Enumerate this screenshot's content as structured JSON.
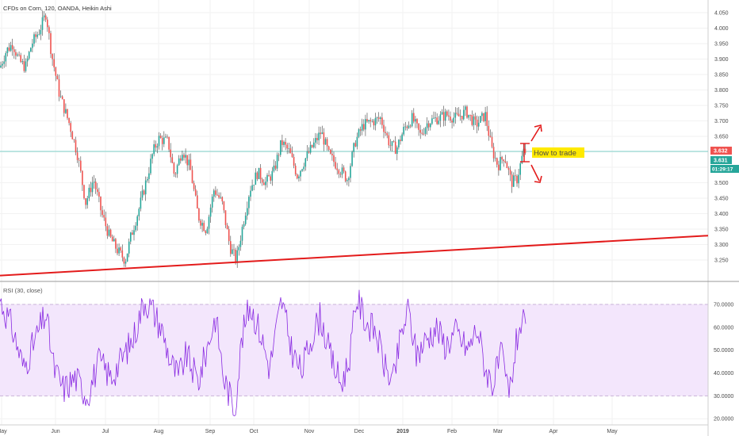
{
  "title": "CFDs on Corn, 120, OANDA, Heikin Ashi",
  "colors": {
    "up": "#26a69a",
    "down": "#ef5350",
    "wick": "#444444",
    "trend": "#e31b1b",
    "rsi": "#8a2be2",
    "band": "#f3e6fc",
    "hline": "#7fd1cb",
    "arrow": "#e31b1b",
    "tag_bg": "#ffea00",
    "tag_text": "#d23f00",
    "price_red": "#ef5350",
    "price_green": "#26a69a"
  },
  "chart_data": {
    "type": "candlestick",
    "price_axis": {
      "ylim": [
        3.25,
        4.07
      ],
      "ticks": [
        "4.050",
        "4.000",
        "3.950",
        "3.900",
        "3.850",
        "3.800",
        "3.750",
        "3.700",
        "3.650",
        "3.600",
        "3.550",
        "3.500",
        "3.450",
        "3.400",
        "3.350",
        "3.300",
        "3.250"
      ]
    },
    "time_axis": {
      "labels": [
        "May",
        "Jun",
        "Jul",
        "Aug",
        "Sep",
        "Oct",
        "Nov",
        "Dec",
        "2019",
        "Feb",
        "Mar",
        "Apr",
        "May"
      ]
    },
    "price_path": [
      {
        "t": 0,
        "v": 3.88
      },
      {
        "t": 8,
        "v": 3.93
      },
      {
        "t": 16,
        "v": 3.95
      },
      {
        "t": 24,
        "v": 3.9
      },
      {
        "t": 32,
        "v": 3.88
      },
      {
        "t": 40,
        "v": 3.95
      },
      {
        "t": 50,
        "v": 3.99
      },
      {
        "t": 58,
        "v": 4.04
      },
      {
        "t": 65,
        "v": 3.92
      },
      {
        "t": 75,
        "v": 3.8
      },
      {
        "t": 88,
        "v": 3.71
      },
      {
        "t": 98,
        "v": 3.62
      },
      {
        "t": 108,
        "v": 3.48
      },
      {
        "t": 118,
        "v": 3.55
      },
      {
        "t": 128,
        "v": 3.45
      },
      {
        "t": 138,
        "v": 3.38
      },
      {
        "t": 148,
        "v": 3.34
      },
      {
        "t": 158,
        "v": 3.31
      },
      {
        "t": 165,
        "v": 3.38
      },
      {
        "t": 175,
        "v": 3.46
      },
      {
        "t": 185,
        "v": 3.55
      },
      {
        "t": 193,
        "v": 3.63
      },
      {
        "t": 200,
        "v": 3.67
      },
      {
        "t": 212,
        "v": 3.66
      },
      {
        "t": 220,
        "v": 3.56
      },
      {
        "t": 230,
        "v": 3.64
      },
      {
        "t": 240,
        "v": 3.58
      },
      {
        "t": 250,
        "v": 3.44
      },
      {
        "t": 260,
        "v": 3.4
      },
      {
        "t": 270,
        "v": 3.52
      },
      {
        "t": 280,
        "v": 3.48
      },
      {
        "t": 290,
        "v": 3.35
      },
      {
        "t": 298,
        "v": 3.31
      },
      {
        "t": 305,
        "v": 3.4
      },
      {
        "t": 315,
        "v": 3.52
      },
      {
        "t": 325,
        "v": 3.57
      },
      {
        "t": 335,
        "v": 3.54
      },
      {
        "t": 345,
        "v": 3.57
      },
      {
        "t": 355,
        "v": 3.66
      },
      {
        "t": 365,
        "v": 3.63
      },
      {
        "t": 375,
        "v": 3.56
      },
      {
        "t": 385,
        "v": 3.61
      },
      {
        "t": 395,
        "v": 3.65
      },
      {
        "t": 405,
        "v": 3.69
      },
      {
        "t": 415,
        "v": 3.62
      },
      {
        "t": 425,
        "v": 3.59
      },
      {
        "t": 438,
        "v": 3.55
      },
      {
        "t": 448,
        "v": 3.66
      },
      {
        "t": 458,
        "v": 3.71
      },
      {
        "t": 470,
        "v": 3.72
      },
      {
        "t": 480,
        "v": 3.73
      },
      {
        "t": 492,
        "v": 3.65
      },
      {
        "t": 500,
        "v": 3.64
      },
      {
        "t": 510,
        "v": 3.7
      },
      {
        "t": 520,
        "v": 3.73
      },
      {
        "t": 530,
        "v": 3.68
      },
      {
        "t": 540,
        "v": 3.72
      },
      {
        "t": 552,
        "v": 3.73
      },
      {
        "t": 563,
        "v": 3.74
      },
      {
        "t": 575,
        "v": 3.73
      },
      {
        "t": 588,
        "v": 3.75
      },
      {
        "t": 600,
        "v": 3.71
      },
      {
        "t": 612,
        "v": 3.74
      },
      {
        "t": 620,
        "v": 3.64
      },
      {
        "t": 628,
        "v": 3.59
      },
      {
        "t": 636,
        "v": 3.62
      },
      {
        "t": 645,
        "v": 3.54
      },
      {
        "t": 652,
        "v": 3.55
      },
      {
        "t": 660,
        "v": 3.63
      },
      {
        "t": 664,
        "v": 3.632
      }
    ],
    "trendline": {
      "start": {
        "t": 0,
        "v": 3.265
      },
      "end": {
        "t": 932,
        "v": 3.383
      }
    },
    "horizontal_line": 3.632,
    "annotation": {
      "text": "How to trade"
    },
    "last_price": "3.632",
    "cursor_price": "3.631",
    "countdown": "01:29:17",
    "rsi": {
      "label": "RSI (30, close)",
      "ylim": [
        18,
        79
      ],
      "band": [
        30,
        70
      ],
      "ticks": [
        "70.0000",
        "60.0000",
        "50.0000",
        "40.0000",
        "30.0000",
        "20.0000"
      ],
      "path": [
        {
          "t": 0,
          "v": 72
        },
        {
          "t": 15,
          "v": 60
        },
        {
          "t": 30,
          "v": 42
        },
        {
          "t": 45,
          "v": 55
        },
        {
          "t": 58,
          "v": 66
        },
        {
          "t": 68,
          "v": 42
        },
        {
          "t": 80,
          "v": 33
        },
        {
          "t": 95,
          "v": 38
        },
        {
          "t": 110,
          "v": 30
        },
        {
          "t": 125,
          "v": 45
        },
        {
          "t": 140,
          "v": 38
        },
        {
          "t": 155,
          "v": 47
        },
        {
          "t": 168,
          "v": 55
        },
        {
          "t": 182,
          "v": 72
        },
        {
          "t": 192,
          "v": 68
        },
        {
          "t": 205,
          "v": 58
        },
        {
          "t": 215,
          "v": 45
        },
        {
          "t": 225,
          "v": 38
        },
        {
          "t": 235,
          "v": 48
        },
        {
          "t": 250,
          "v": 36
        },
        {
          "t": 262,
          "v": 52
        },
        {
          "t": 272,
          "v": 65
        },
        {
          "t": 282,
          "v": 38
        },
        {
          "t": 296,
          "v": 24
        },
        {
          "t": 305,
          "v": 55
        },
        {
          "t": 315,
          "v": 70
        },
        {
          "t": 328,
          "v": 58
        },
        {
          "t": 340,
          "v": 42
        },
        {
          "t": 355,
          "v": 72
        },
        {
          "t": 368,
          "v": 50
        },
        {
          "t": 380,
          "v": 40
        },
        {
          "t": 392,
          "v": 55
        },
        {
          "t": 404,
          "v": 65
        },
        {
          "t": 416,
          "v": 48
        },
        {
          "t": 430,
          "v": 35
        },
        {
          "t": 440,
          "v": 45
        },
        {
          "t": 450,
          "v": 73
        },
        {
          "t": 462,
          "v": 62
        },
        {
          "t": 474,
          "v": 58
        },
        {
          "t": 486,
          "v": 42
        },
        {
          "t": 496,
          "v": 36
        },
        {
          "t": 505,
          "v": 55
        },
        {
          "t": 515,
          "v": 68
        },
        {
          "t": 525,
          "v": 48
        },
        {
          "t": 538,
          "v": 55
        },
        {
          "t": 550,
          "v": 60
        },
        {
          "t": 562,
          "v": 52
        },
        {
          "t": 575,
          "v": 58
        },
        {
          "t": 590,
          "v": 50
        },
        {
          "t": 602,
          "v": 60
        },
        {
          "t": 612,
          "v": 42
        },
        {
          "t": 622,
          "v": 35
        },
        {
          "t": 632,
          "v": 48
        },
        {
          "t": 642,
          "v": 30
        },
        {
          "t": 652,
          "v": 55
        },
        {
          "t": 658,
          "v": 64
        },
        {
          "t": 664,
          "v": 55
        }
      ]
    }
  }
}
